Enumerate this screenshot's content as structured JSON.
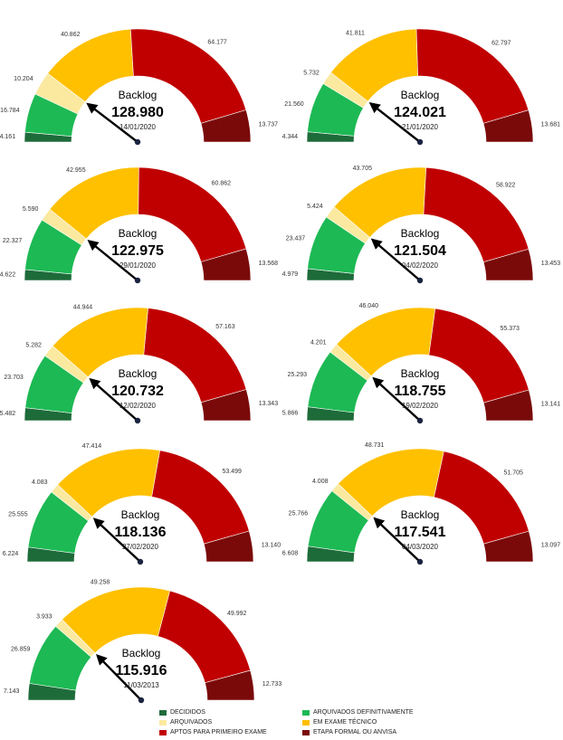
{
  "chart_data": {
    "type": "gauge",
    "categories": [
      "DECIDIDOS",
      "ARQUIVADOS DEFINITIVAMENTE",
      "ARQUIVADOS",
      "EM EXAME TÉCNICO",
      "APTOS PARA PRIMEIRO EXAME",
      "ETAPA FORMAL OU ANVISA"
    ],
    "center_label": "Backlog",
    "gauges": [
      {
        "date": "14/01/2020",
        "backlog": "128.980",
        "values": [
          "4.161",
          "16.784",
          "10.204",
          "40.862",
          "64.177",
          "13.737"
        ]
      },
      {
        "date": "21/01/2020",
        "backlog": "124.021",
        "values": [
          "4.344",
          "21.560",
          "5.732",
          "41.811",
          "62.797",
          "13.681"
        ]
      },
      {
        "date": "29/01/2020",
        "backlog": "122.975",
        "values": [
          "4.622",
          "22.327",
          "5.590",
          "42.955",
          "60.862",
          "13.568"
        ]
      },
      {
        "date": "04/02/2020",
        "backlog": "121.504",
        "values": [
          "4.979",
          "23.437",
          "5.424",
          "43.705",
          "58.922",
          "13.453"
        ]
      },
      {
        "date": "12/02/2020",
        "backlog": "120.732",
        "values": [
          "5.482",
          "23.703",
          "5.282",
          "44.944",
          "57.163",
          "13.343"
        ]
      },
      {
        "date": "19/02/2020",
        "backlog": "118.755",
        "values": [
          "5.866",
          "25.293",
          "4.201",
          "46.040",
          "55.373",
          "13.141"
        ]
      },
      {
        "date": "27/02/2020",
        "backlog": "118.136",
        "values": [
          "6.224",
          "25.555",
          "4.083",
          "47.414",
          "53.499",
          "13.140"
        ]
      },
      {
        "date": "04/03/2020",
        "backlog": "117.541",
        "values": [
          "6.608",
          "25.766",
          "4.008",
          "48.731",
          "51.705",
          "13.097"
        ]
      },
      {
        "date": "11/03/2013",
        "backlog": "115.916",
        "values": [
          "7.143",
          "26.859",
          "3.933",
          "49.258",
          "49.992",
          "12.733"
        ]
      }
    ]
  },
  "legend": [
    {
      "label": "DECIDIDOS",
      "color": "#1e6b3a"
    },
    {
      "label": "ARQUIVADOS DEFINITIVAMENTE",
      "color": "#1db954"
    },
    {
      "label": "ARQUIVADOS",
      "color": "#fbe9a0"
    },
    {
      "label": "EM EXAME TÉCNICO",
      "color": "#ffc000"
    },
    {
      "label": "APTOS PARA PRIMEIRO EXAME",
      "color": "#c00000"
    },
    {
      "label": "ETAPA FORMAL OU ANVISA",
      "color": "#7a0a0a"
    }
  ],
  "segment_colors": {
    "green_dark": "#1e6b3a",
    "green": "#1db954",
    "cream": "#fbe9a0",
    "yellow": "#ffc000",
    "red": "#c00000",
    "maroon": "#7a0a0a"
  }
}
